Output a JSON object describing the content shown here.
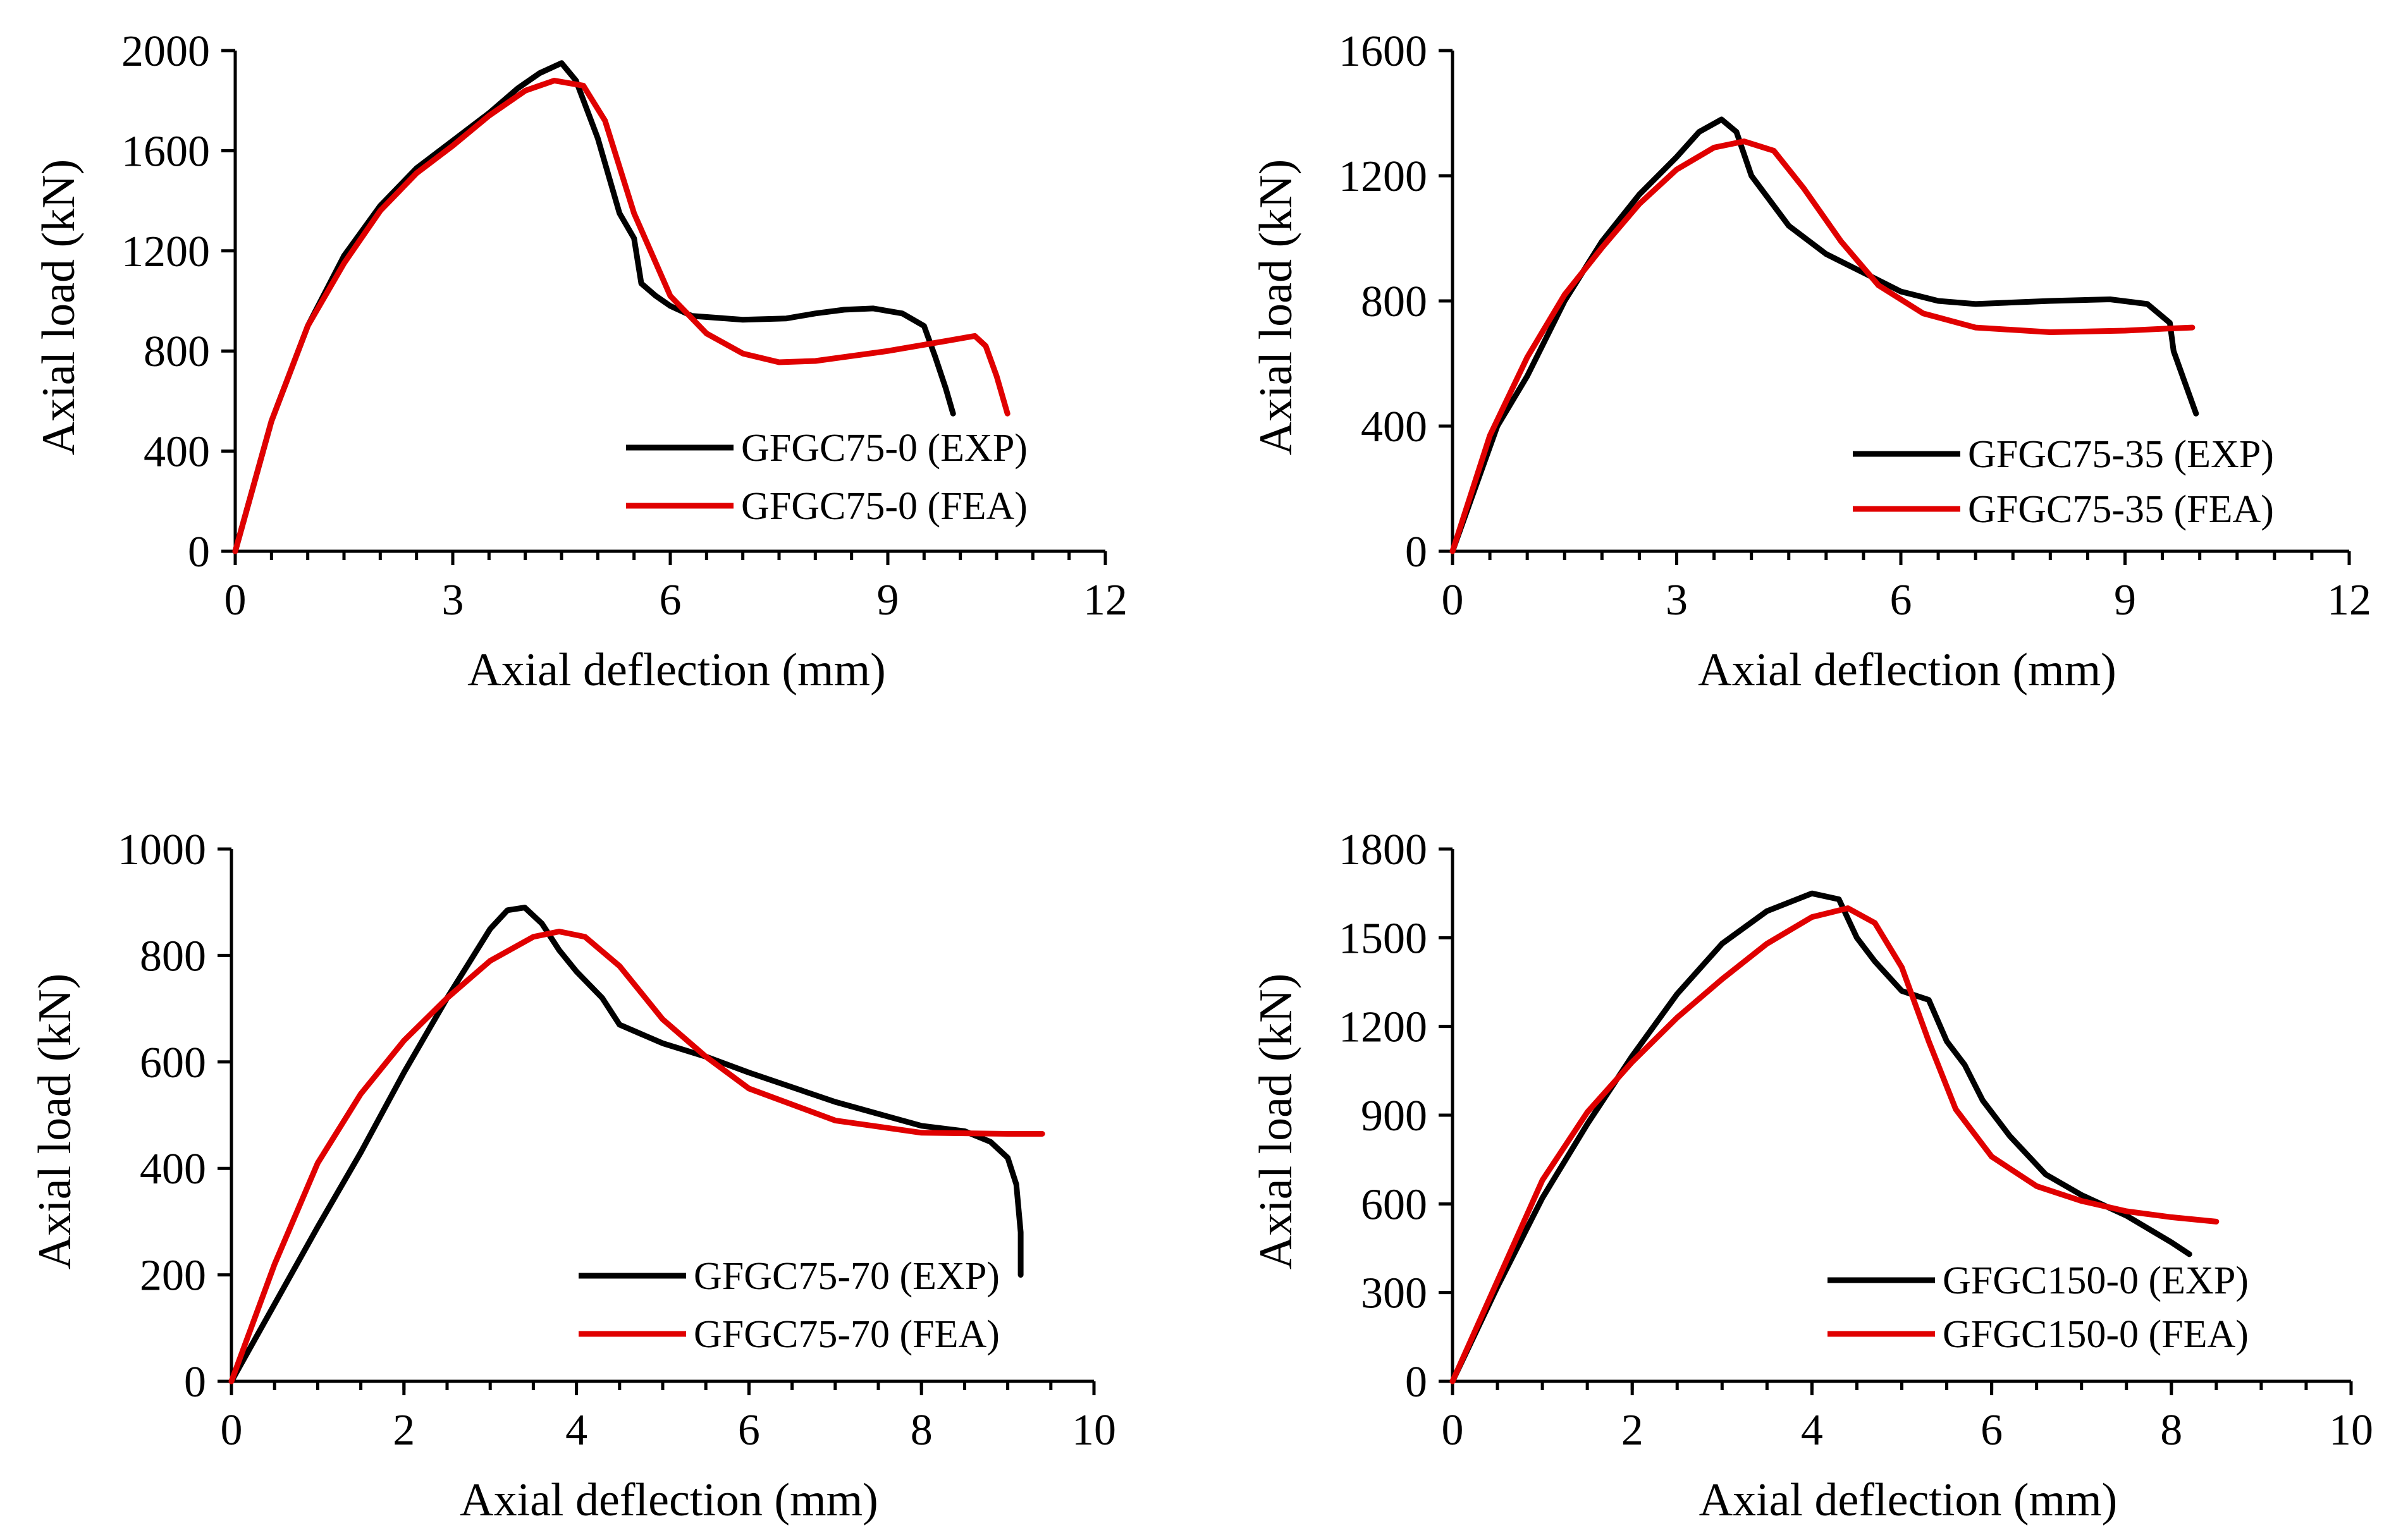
{
  "colors": {
    "exp": "#000000",
    "fea": "#e00000",
    "axis": "#000000",
    "background": "#ffffff"
  },
  "chart_data": [
    {
      "id": "a",
      "type": "line",
      "xlabel": "Axial deflection (mm)",
      "ylabel": "Axial load (kN)",
      "xlim": [
        0,
        12
      ],
      "ylim": [
        0,
        2000
      ],
      "xticks": [
        0,
        3,
        6,
        9,
        12
      ],
      "yticks": [
        0,
        400,
        800,
        1200,
        1600,
        2000
      ],
      "xminor": 0.5,
      "legend_position": "bottom-right",
      "series": [
        {
          "name": "GFGC75-0 (EXP)",
          "color": "#000000",
          "x": [
            0,
            0.5,
            1,
            1.5,
            2,
            2.5,
            3,
            3.5,
            3.9,
            4.2,
            4.5,
            4.7,
            5,
            5.3,
            5.5,
            5.6,
            5.8,
            6,
            6.3,
            7,
            7.6,
            8,
            8.4,
            8.8,
            9.2,
            9.5,
            9.65,
            9.8,
            9.9
          ],
          "y": [
            0,
            520,
            900,
            1180,
            1380,
            1530,
            1640,
            1750,
            1850,
            1910,
            1950,
            1880,
            1650,
            1350,
            1250,
            1070,
            1020,
            980,
            940,
            925,
            930,
            950,
            965,
            970,
            950,
            900,
            780,
            650,
            550
          ]
        },
        {
          "name": "GFGC75-0 (FEA)",
          "color": "#e00000",
          "x": [
            0,
            0.5,
            1,
            1.5,
            2,
            2.5,
            3,
            3.5,
            4,
            4.4,
            4.8,
            5.1,
            5.5,
            6,
            6.5,
            7,
            7.5,
            8,
            9,
            9.8,
            10.2,
            10.35,
            10.5,
            10.65
          ],
          "y": [
            0,
            520,
            900,
            1150,
            1360,
            1510,
            1620,
            1740,
            1840,
            1880,
            1860,
            1720,
            1350,
            1020,
            870,
            790,
            755,
            760,
            800,
            840,
            860,
            820,
            700,
            550
          ]
        }
      ]
    },
    {
      "id": "b",
      "type": "line",
      "xlabel": "Axial deflection (mm)",
      "ylabel": "Axial load (kN)",
      "xlim": [
        0,
        12
      ],
      "ylim": [
        0,
        1600
      ],
      "xticks": [
        0,
        3,
        6,
        9,
        12
      ],
      "yticks": [
        0,
        400,
        800,
        1200,
        1600
      ],
      "xminor": 0.5,
      "legend_position": "bottom-right",
      "series": [
        {
          "name": "GFGC75-35 (EXP)",
          "color": "#000000",
          "x": [
            0,
            0.3,
            0.6,
            1,
            1.5,
            2,
            2.5,
            3,
            3.3,
            3.6,
            3.8,
            4,
            4.5,
            5,
            5.5,
            6,
            6.5,
            7,
            8,
            8.8,
            9.3,
            9.6,
            9.65,
            9.8,
            9.95
          ],
          "y": [
            0,
            200,
            400,
            560,
            800,
            990,
            1140,
            1260,
            1340,
            1380,
            1340,
            1200,
            1040,
            950,
            890,
            830,
            800,
            790,
            800,
            805,
            790,
            730,
            640,
            540,
            440
          ]
        },
        {
          "name": "GFGC75-35 (FEA)",
          "color": "#e00000",
          "x": [
            0,
            0.5,
            1,
            1.5,
            2,
            2.5,
            3,
            3.5,
            3.9,
            4.3,
            4.7,
            5.2,
            5.7,
            6.3,
            7,
            8,
            9,
            9.6,
            9.9
          ],
          "y": [
            0,
            370,
            620,
            820,
            970,
            1110,
            1220,
            1290,
            1310,
            1280,
            1160,
            990,
            850,
            760,
            715,
            700,
            705,
            712,
            715
          ]
        }
      ]
    },
    {
      "id": "c",
      "type": "line",
      "xlabel": "Axial deflection (mm)",
      "ylabel": "Axial load (kN)",
      "xlim": [
        0,
        10
      ],
      "ylim": [
        0,
        1000
      ],
      "xticks": [
        0,
        2,
        4,
        6,
        8,
        10
      ],
      "yticks": [
        0,
        200,
        400,
        600,
        800,
        1000
      ],
      "xminor": 0.5,
      "legend_position": "bottom-right",
      "series": [
        {
          "name": "GFGC75-70 (EXP)",
          "color": "#000000",
          "x": [
            0,
            0.5,
            1,
            1.5,
            2,
            2.5,
            3,
            3.2,
            3.4,
            3.6,
            3.8,
            4,
            4.3,
            4.5,
            5,
            5.5,
            6,
            7,
            8,
            8.5,
            8.8,
            9,
            9.1,
            9.15,
            9.15
          ],
          "y": [
            0,
            145,
            290,
            430,
            580,
            720,
            850,
            885,
            890,
            860,
            810,
            770,
            720,
            670,
            635,
            610,
            580,
            525,
            480,
            470,
            450,
            420,
            370,
            280,
            200
          ]
        },
        {
          "name": "GFGC75-70 (FEA)",
          "color": "#e00000",
          "x": [
            0,
            0.5,
            1,
            1.5,
            2,
            2.5,
            3,
            3.5,
            3.8,
            4.1,
            4.5,
            5,
            5.5,
            6,
            7,
            8,
            9,
            9.4
          ],
          "y": [
            0,
            220,
            410,
            540,
            640,
            720,
            790,
            835,
            845,
            835,
            780,
            680,
            610,
            550,
            490,
            467,
            465,
            465
          ]
        }
      ]
    },
    {
      "id": "d",
      "type": "line",
      "xlabel": "Axial deflection (mm)",
      "ylabel": "Axial load (kN)",
      "xlim": [
        0,
        10
      ],
      "ylim": [
        0,
        1800
      ],
      "xticks": [
        0,
        2,
        4,
        6,
        8,
        10
      ],
      "yticks": [
        0,
        300,
        600,
        900,
        1200,
        1500,
        1800
      ],
      "xminor": 0.5,
      "legend_position": "bottom-right",
      "series": [
        {
          "name": "GFGC150-0 (EXP)",
          "color": "#000000",
          "x": [
            0,
            0.5,
            1,
            1.5,
            2,
            2.5,
            3,
            3.5,
            4,
            4.3,
            4.5,
            4.7,
            5,
            5.3,
            5.5,
            5.7,
            5.9,
            6.2,
            6.6,
            7,
            7.5,
            8,
            8.2
          ],
          "y": [
            0,
            320,
            620,
            870,
            1100,
            1310,
            1480,
            1590,
            1650,
            1630,
            1500,
            1420,
            1320,
            1290,
            1150,
            1070,
            950,
            830,
            700,
            630,
            560,
            470,
            430
          ]
        },
        {
          "name": "GFGC150-0 (FEA)",
          "color": "#e00000",
          "x": [
            0,
            0.5,
            1,
            1.5,
            2,
            2.5,
            3,
            3.5,
            4,
            4.4,
            4.7,
            5,
            5.3,
            5.6,
            6,
            6.5,
            7,
            7.5,
            8,
            8.5
          ],
          "y": [
            0,
            340,
            680,
            910,
            1080,
            1230,
            1360,
            1480,
            1570,
            1600,
            1550,
            1400,
            1150,
            920,
            760,
            660,
            610,
            575,
            555,
            540
          ]
        }
      ]
    }
  ]
}
